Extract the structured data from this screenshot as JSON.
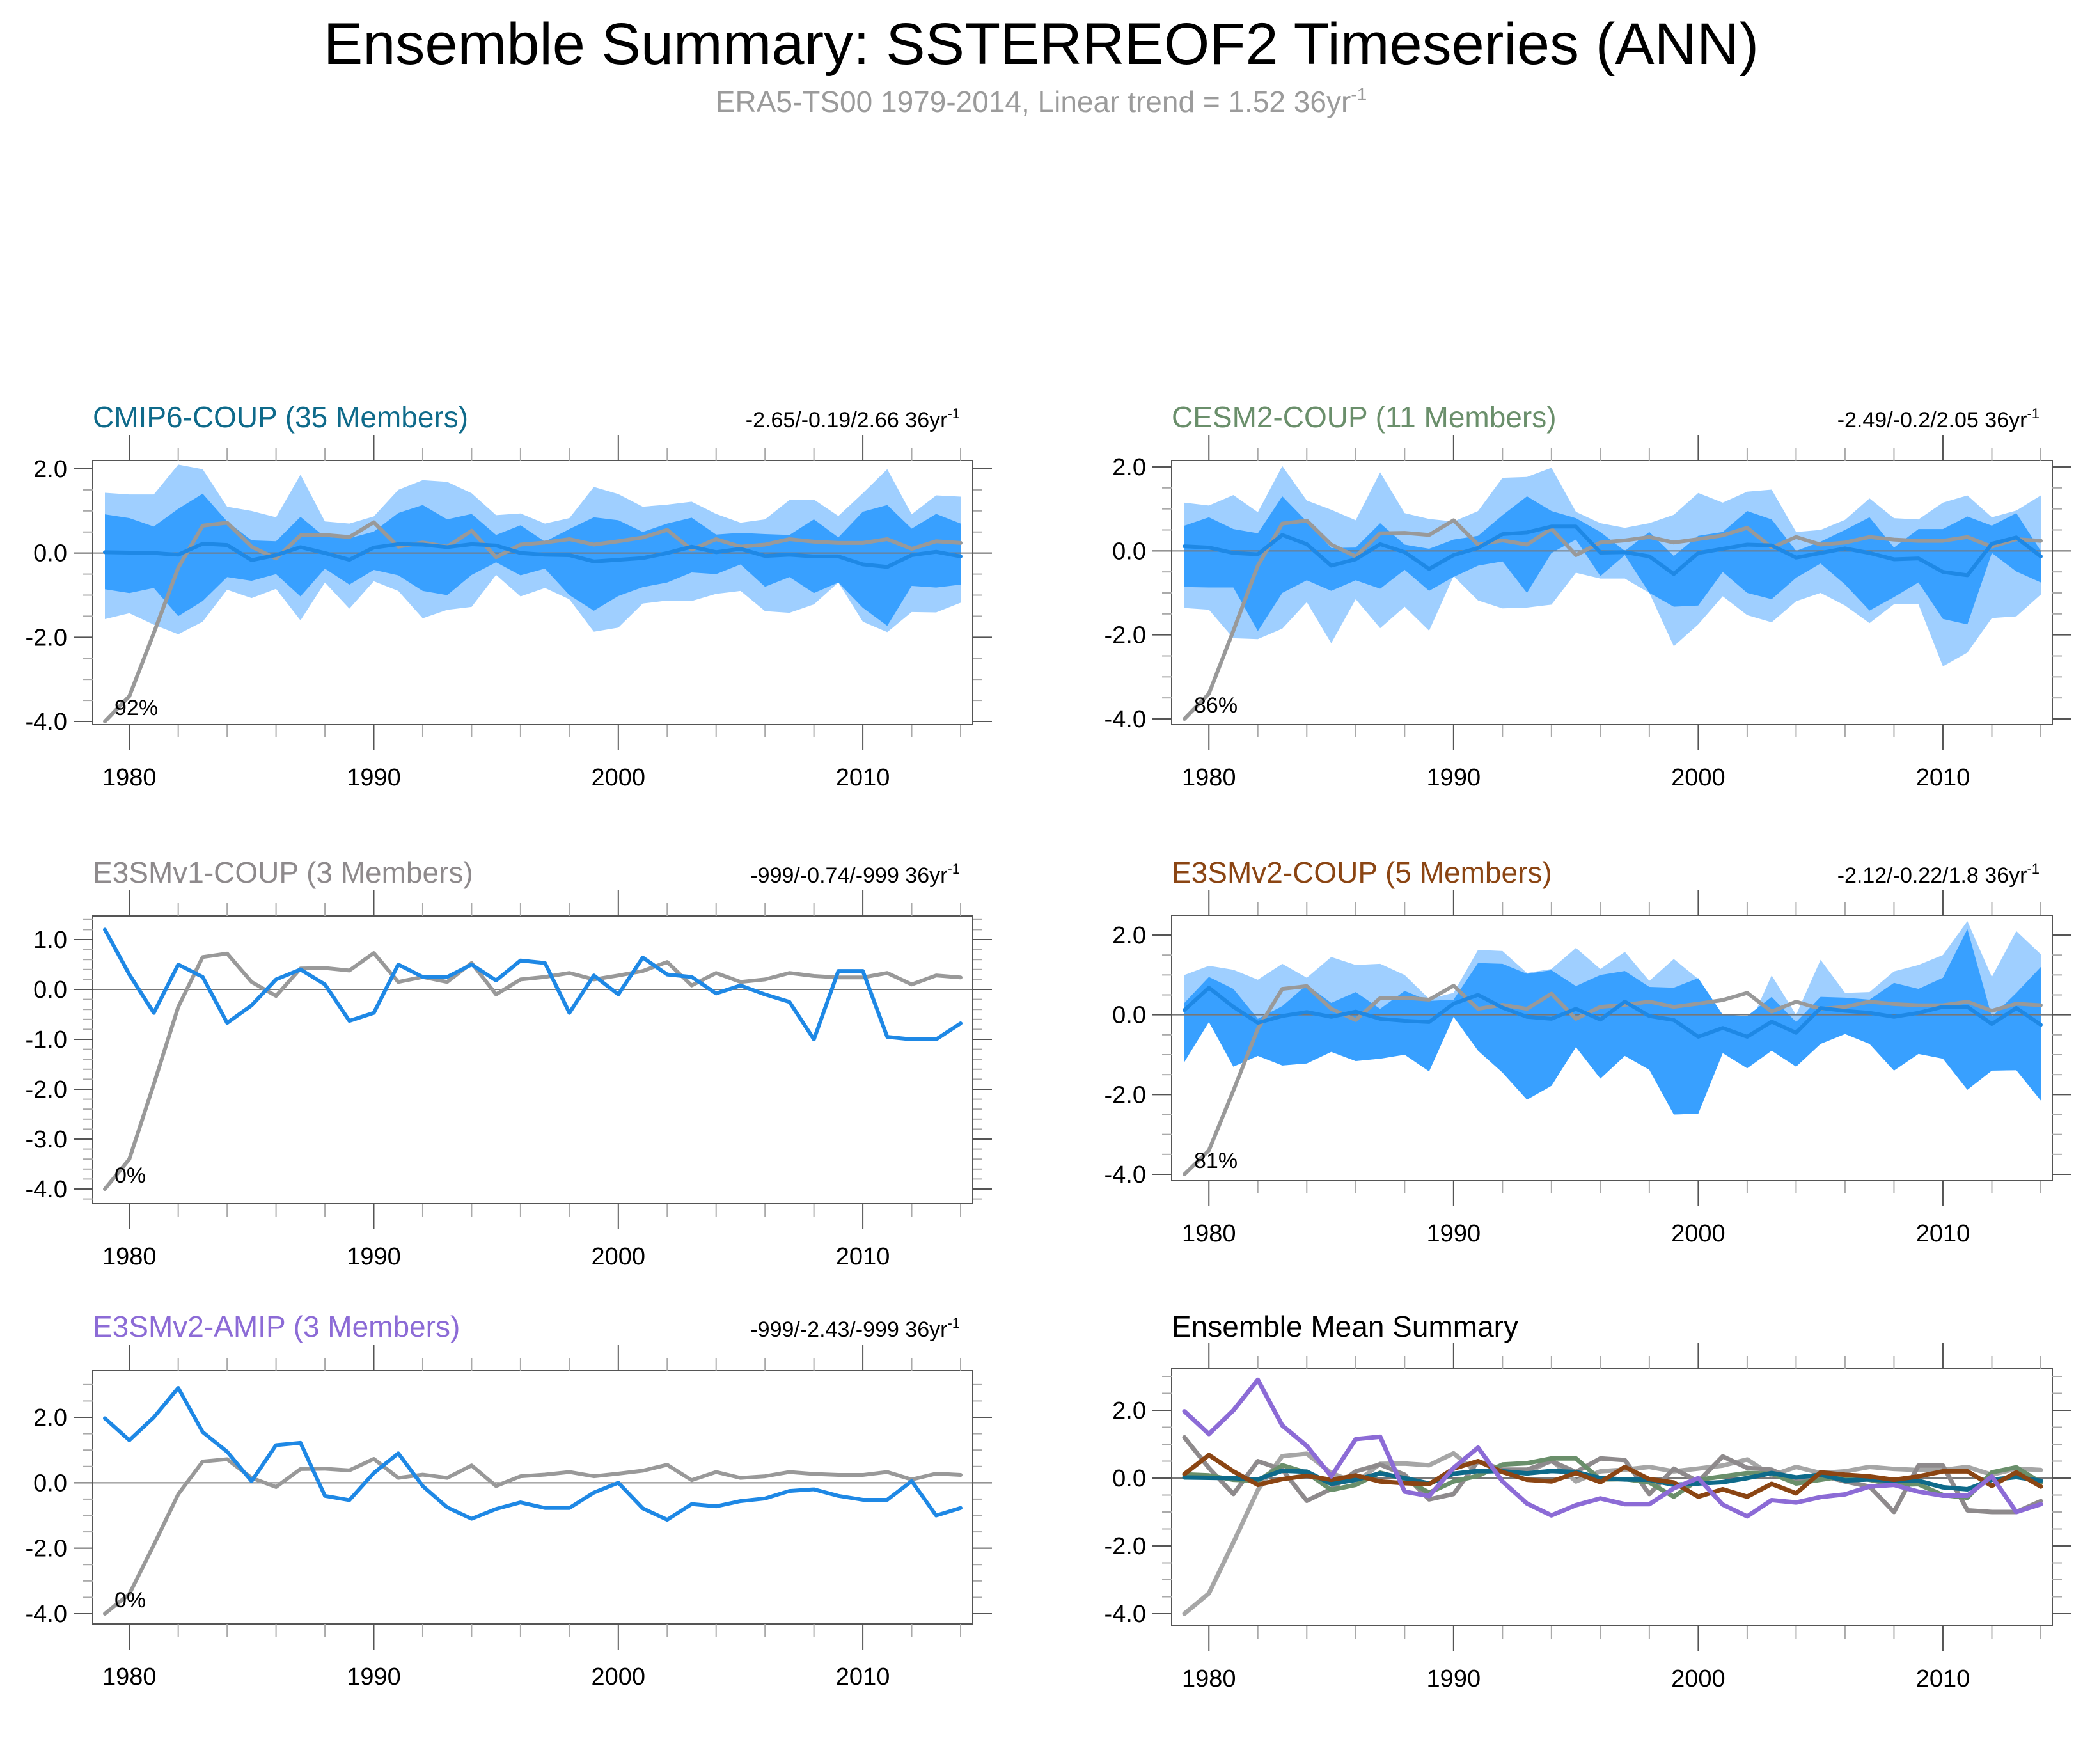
{
  "title": "Ensemble Summary: SSTERREOF2 Timeseries (ANN)",
  "subtitle": {
    "text": "ERA5-TS00 1979-2014, Linear trend = 1.52 36yr",
    "sup": "-1"
  },
  "colors": {
    "band_outer": "#9fcfff",
    "band_inner": "#38a0ff",
    "model_line": "#1e88e5",
    "obs_line": "#999999",
    "zero_line": "#777777",
    "cmip6": "#0e6a8a",
    "cesm2": "#6a8f6b",
    "e3smv1": "#8e8a8c",
    "e3smv2": "#8b4513",
    "amip": "#8c6bd6",
    "obs_summary": "#a6a6a6"
  },
  "chart_data": [
    {
      "id": "cmip6",
      "type": "area",
      "title": "CMIP6-COUP (35 Members)",
      "title_color_key": "cmip6",
      "trend_text": "-2.65/-0.19/2.66 36yr",
      "trend_sup": "-1",
      "pct_label": "92%",
      "x_start": 1979,
      "x_end": 2014,
      "xticks": [
        1980,
        1990,
        2000,
        2010
      ],
      "ylim": [
        -4.3,
        2.2
      ],
      "yticks": [
        2.0,
        0.0,
        -2.0,
        -4.0
      ],
      "ytick_labels": [
        "2.0",
        "0.0",
        "-2.0",
        "-4.0"
      ],
      "yminor": 0.5,
      "mean": [
        0.02,
        0.01,
        0.0,
        -0.04,
        0.22,
        0.19,
        -0.17,
        -0.05,
        0.14,
        0.0,
        -0.16,
        0.13,
        0.21,
        0.2,
        0.14,
        0.21,
        0.18,
        0.0,
        -0.04,
        -0.05,
        -0.2,
        -0.16,
        -0.12,
        0.0,
        0.15,
        0.02,
        0.1,
        -0.07,
        -0.04,
        -0.08,
        -0.08,
        -0.27,
        -0.33,
        -0.05,
        0.03,
        -0.08
      ],
      "outer_upper": [
        1.43,
        1.39,
        1.39,
        2.1,
        1.99,
        1.1,
        1.0,
        0.85,
        1.86,
        0.75,
        0.7,
        0.87,
        1.5,
        1.73,
        1.69,
        1.42,
        0.9,
        0.94,
        0.7,
        0.83,
        1.57,
        1.4,
        1.1,
        1.15,
        1.22,
        0.93,
        0.72,
        0.8,
        1.26,
        1.27,
        0.88,
        1.42,
        1.99,
        0.92,
        1.37,
        1.34
      ],
      "inner_upper": [
        0.92,
        0.83,
        0.63,
        1.05,
        1.41,
        0.75,
        0.3,
        0.28,
        0.86,
        0.38,
        0.35,
        0.51,
        0.95,
        1.14,
        0.8,
        0.93,
        0.43,
        0.66,
        0.27,
        0.57,
        0.85,
        0.78,
        0.5,
        0.7,
        0.84,
        0.44,
        0.48,
        0.45,
        0.43,
        0.8,
        0.37,
        0.98,
        1.14,
        0.58,
        0.93,
        0.7
      ],
      "inner_lower": [
        -0.86,
        -0.95,
        -0.83,
        -1.5,
        -1.14,
        -0.57,
        -0.66,
        -0.5,
        -1.03,
        -0.37,
        -0.75,
        -0.4,
        -0.53,
        -0.9,
        -1.0,
        -0.52,
        -0.22,
        -0.53,
        -0.37,
        -1.0,
        -1.37,
        -1.02,
        -0.81,
        -0.7,
        -0.46,
        -0.5,
        -0.27,
        -0.8,
        -0.57,
        -0.95,
        -0.7,
        -1.3,
        -1.73,
        -0.78,
        -0.82,
        -0.75
      ],
      "outer_lower": [
        -1.57,
        -1.43,
        -1.7,
        -1.93,
        -1.63,
        -0.87,
        -1.07,
        -0.85,
        -1.6,
        -0.7,
        -1.32,
        -0.67,
        -0.9,
        -1.55,
        -1.35,
        -1.28,
        -0.52,
        -1.03,
        -0.83,
        -1.1,
        -1.87,
        -1.77,
        -1.2,
        -1.13,
        -1.14,
        -0.97,
        -0.9,
        -1.38,
        -1.42,
        -1.22,
        -0.7,
        -1.63,
        -1.88,
        -1.4,
        -1.41,
        -1.18
      ]
    },
    {
      "id": "cesm2",
      "type": "area",
      "title": "CESM2-COUP (11 Members)",
      "title_color_key": "cesm2",
      "trend_text": "-2.49/-0.2/2.05 36yr",
      "trend_sup": "-1",
      "pct_label": "86%",
      "x_start": 1979,
      "x_end": 2014,
      "xticks": [
        1980,
        1990,
        2000,
        2010
      ],
      "ylim": [
        -4.1,
        2.3
      ],
      "yticks": [
        2.0,
        0.0,
        -2.0,
        -4.0
      ],
      "ytick_labels": [
        "2.0",
        "0.0",
        "-2.0",
        "-4.0"
      ],
      "yminor": 0.5,
      "mean": [
        0.11,
        0.08,
        -0.05,
        -0.08,
        0.38,
        0.16,
        -0.35,
        -0.2,
        0.16,
        -0.03,
        -0.43,
        -0.1,
        0.07,
        0.4,
        0.44,
        0.58,
        0.58,
        -0.04,
        -0.03,
        -0.13,
        -0.55,
        -0.05,
        0.05,
        0.15,
        0.13,
        -0.16,
        -0.05,
        0.06,
        -0.05,
        -0.2,
        -0.18,
        -0.5,
        -0.58,
        0.17,
        0.32,
        -0.13
      ],
      "outer_upper": [
        1.15,
        1.08,
        1.33,
        0.92,
        2.02,
        1.2,
        0.98,
        0.73,
        1.87,
        0.9,
        0.76,
        0.7,
        0.95,
        1.74,
        1.76,
        1.98,
        0.93,
        0.66,
        0.55,
        0.66,
        0.86,
        1.38,
        1.15,
        1.41,
        1.46,
        0.45,
        0.5,
        0.74,
        1.25,
        0.78,
        0.75,
        1.15,
        1.32,
        0.8,
        0.96,
        1.32
      ],
      "inner_upper": [
        0.6,
        0.8,
        0.52,
        0.42,
        1.3,
        0.7,
        0.07,
        0.08,
        0.66,
        0.15,
        0.05,
        0.27,
        0.36,
        0.85,
        1.3,
        0.95,
        0.78,
        0.45,
        0.0,
        0.45,
        -0.12,
        0.36,
        0.45,
        0.95,
        0.75,
        0.0,
        0.22,
        0.5,
        0.8,
        0.08,
        0.52,
        0.52,
        0.82,
        0.6,
        0.9,
        0.0
      ],
      "inner_lower": [
        -0.86,
        -0.87,
        -0.87,
        -1.91,
        -1.0,
        -0.7,
        -0.95,
        -0.7,
        -0.9,
        -0.45,
        -0.95,
        -0.62,
        -0.35,
        -0.25,
        -1.0,
        -0.05,
        0.27,
        -0.6,
        -0.1,
        -1.0,
        -1.33,
        -1.3,
        -0.5,
        -1.0,
        -1.15,
        -0.64,
        -0.3,
        -0.8,
        -1.42,
        -1.1,
        -0.75,
        -1.62,
        -1.75,
        -0.05,
        -0.49,
        -0.75
      ],
      "outer_lower": [
        -1.36,
        -1.4,
        -2.08,
        -2.1,
        -1.85,
        -1.22,
        -2.2,
        -1.15,
        -1.84,
        -1.33,
        -1.9,
        -0.6,
        -1.18,
        -1.37,
        -1.35,
        -1.28,
        -0.52,
        -0.66,
        -0.66,
        -1.0,
        -2.27,
        -1.75,
        -1.08,
        -1.53,
        -1.7,
        -1.2,
        -1.0,
        -1.3,
        -1.72,
        -1.27,
        -1.27,
        -2.75,
        -2.42,
        -1.6,
        -1.56,
        -1.04
      ]
    },
    {
      "id": "e3smv1",
      "type": "line",
      "title": "E3SMv1-COUP (3 Members)",
      "title_color_key": "e3smv1",
      "trend_text": "-999/-0.74/-999 36yr",
      "trend_sup": "-1",
      "pct_label": "0%",
      "x_start": 1979,
      "x_end": 2014,
      "xticks": [
        1980,
        1990,
        2000,
        2010
      ],
      "ylim": [
        -4.3,
        1.5
      ],
      "yticks": [
        1.0,
        0.0,
        -1.0,
        -2.0,
        -3.0,
        -4.0
      ],
      "ytick_labels": [
        "1.0",
        "0.0",
        "-1.0",
        "-2.0",
        "-3.0",
        "-4.0"
      ],
      "yminor": 0.2,
      "mean": [
        1.2,
        0.3,
        -0.47,
        0.5,
        0.25,
        -0.67,
        -0.32,
        0.2,
        0.4,
        0.1,
        -0.63,
        -0.47,
        0.5,
        0.25,
        0.25,
        0.5,
        0.18,
        0.58,
        0.53,
        -0.47,
        0.28,
        -0.1,
        0.64,
        0.3,
        0.25,
        -0.08,
        0.08,
        -0.1,
        -0.25,
        -1.0,
        0.37,
        0.37,
        -0.95,
        -1.0,
        -1.0,
        -0.68
      ]
    },
    {
      "id": "e3smv2",
      "type": "area",
      "title": "E3SMv2-COUP (5 Members)",
      "title_color_key": "e3smv2",
      "trend_text": "-2.12/-0.22/1.8 36yr",
      "trend_sup": "-1",
      "pct_label": "81%",
      "x_start": 1979,
      "x_end": 2014,
      "xticks": [
        1980,
        1990,
        2000,
        2010
      ],
      "ylim": [
        -4.15,
        2.35
      ],
      "yticks": [
        2.0,
        0.0,
        -2.0,
        -4.0
      ],
      "ytick_labels": [
        "2.0",
        "0.0",
        "-2.0",
        "-4.0"
      ],
      "yminor": 0.5,
      "mean": [
        0.12,
        0.68,
        0.2,
        -0.2,
        -0.03,
        0.07,
        -0.05,
        0.08,
        -0.1,
        -0.15,
        -0.18,
        0.28,
        0.5,
        0.18,
        -0.05,
        -0.1,
        0.15,
        -0.12,
        0.33,
        -0.03,
        -0.13,
        -0.55,
        -0.33,
        -0.55,
        -0.17,
        -0.45,
        0.17,
        0.1,
        0.05,
        -0.05,
        0.05,
        0.2,
        0.2,
        -0.23,
        0.17,
        -0.25
      ],
      "outer_upper": [
        1.0,
        1.23,
        1.13,
        0.88,
        1.28,
        0.93,
        1.45,
        1.25,
        1.28,
        1.0,
        0.4,
        0.55,
        1.63,
        1.6,
        1.05,
        1.15,
        1.68,
        1.15,
        1.58,
        0.85,
        1.4,
        0.9,
        0.0,
        -0.38,
        0.99,
        0.0,
        1.38,
        0.55,
        0.57,
        1.09,
        1.25,
        1.5,
        2.35,
        0.95,
        2.1,
        1.52
      ],
      "inner_upper": [
        0.3,
        0.95,
        0.65,
        -0.1,
        0.22,
        0.75,
        0.3,
        0.57,
        0.15,
        0.6,
        0.35,
        0.38,
        1.3,
        1.28,
        1.03,
        1.12,
        0.72,
        1.0,
        1.1,
        0.7,
        0.68,
        0.92,
        0.0,
        -0.03,
        0.45,
        -0.18,
        0.45,
        0.43,
        0.38,
        0.8,
        0.65,
        0.93,
        2.15,
        -0.05,
        0.55,
        1.2
      ],
      "inner_lower": [
        -1.18,
        -0.18,
        -1.3,
        -1.03,
        -1.27,
        -1.22,
        -0.93,
        -1.16,
        -1.1,
        -1.0,
        -1.42,
        -0.05,
        -0.9,
        -1.45,
        -2.13,
        -1.78,
        -0.81,
        -1.6,
        -1.03,
        -1.38,
        -2.5,
        -2.48,
        -0.96,
        -1.34,
        -0.9,
        -1.3,
        -0.73,
        -0.48,
        -0.73,
        -1.4,
        -0.98,
        -1.1,
        -1.88,
        -1.4,
        -1.39,
        -2.15
      ],
      "outer_lower": [
        -1.18,
        -0.18,
        -1.3,
        -1.03,
        -1.27,
        -1.22,
        -0.93,
        -1.16,
        -1.1,
        -1.0,
        -1.42,
        -0.05,
        -0.9,
        -1.45,
        -2.13,
        -1.78,
        -0.81,
        -1.6,
        -1.03,
        -1.38,
        -2.5,
        -2.48,
        -0.96,
        -1.34,
        -0.9,
        -1.3,
        -0.73,
        -0.48,
        -0.73,
        -1.4,
        -0.98,
        -1.1,
        -1.88,
        -1.4,
        -1.39,
        -2.15
      ]
    },
    {
      "id": "amip",
      "type": "line",
      "title": "E3SMv2-AMIP (3 Members)",
      "title_color_key": "amip",
      "trend_text": "-999/-2.43/-999 36yr",
      "trend_sup": "-1",
      "pct_label": "0%",
      "x_start": 1979,
      "x_end": 2014,
      "xticks": [
        1980,
        1990,
        2000,
        2010
      ],
      "ylim": [
        -4.3,
        3.4
      ],
      "yticks": [
        2.0,
        0.0,
        -2.0,
        -4.0
      ],
      "ytick_labels": [
        "2.0",
        "0.0",
        "-2.0",
        "-4.0"
      ],
      "yminor": 0.5,
      "mean": [
        1.97,
        1.3,
        2.0,
        2.9,
        1.55,
        0.95,
        0.05,
        1.15,
        1.22,
        -0.4,
        -0.53,
        0.3,
        0.9,
        -0.1,
        -0.75,
        -1.1,
        -0.8,
        -0.6,
        -0.77,
        -0.77,
        -0.3,
        0.0,
        -0.78,
        -1.13,
        -0.65,
        -0.72,
        -0.56,
        -0.48,
        -0.25,
        -0.2,
        -0.4,
        -0.52,
        -0.52,
        0.05,
        -1.0,
        -0.77
      ]
    },
    {
      "id": "summary",
      "type": "line",
      "title": "Ensemble Mean Summary",
      "title_color_key": null,
      "x_start": 1979,
      "x_end": 2014,
      "xticks": [
        1980,
        1990,
        2000,
        2010
      ],
      "ylim": [
        -4.3,
        3.4
      ],
      "yticks": [
        2.0,
        0.0,
        -2.0,
        -4.0
      ],
      "ytick_labels": [
        "2.0",
        "0.0",
        "-2.0",
        "-4.0"
      ],
      "yminor": 0.5,
      "series_keys": [
        "obs",
        "e3smv1",
        "cesm2",
        "cmip6",
        "e3smv2",
        "amip"
      ]
    }
  ],
  "obs": {
    "name": "ERA5-TS00",
    "values": [
      -4.0,
      -3.4,
      -1.9,
      -0.35,
      0.65,
      0.72,
      0.15,
      -0.13,
      0.42,
      0.43,
      0.38,
      0.73,
      0.15,
      0.25,
      0.15,
      0.53,
      -0.1,
      0.2,
      0.25,
      0.33,
      0.2,
      0.28,
      0.37,
      0.55,
      0.08,
      0.33,
      0.15,
      0.2,
      0.33,
      0.27,
      0.24,
      0.24,
      0.33,
      0.1,
      0.28,
      0.24
    ]
  }
}
